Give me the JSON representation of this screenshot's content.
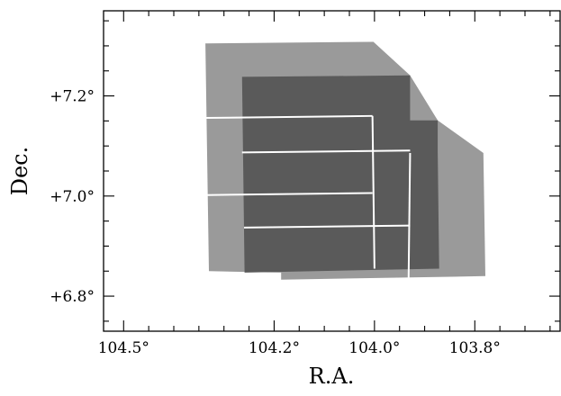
{
  "chart_data": {
    "type": "footprint",
    "xlabel": "R.A.",
    "ylabel": "Dec.",
    "xlim": [
      104.54,
      103.63
    ],
    "ylim": [
      6.73,
      7.37
    ],
    "x_ticks": [
      {
        "value": 104.5,
        "label": "104.5°"
      },
      {
        "value": 104.2,
        "label": "104.2°"
      },
      {
        "value": 104.0,
        "label": "104.0°"
      },
      {
        "value": 103.8,
        "label": "103.8°"
      }
    ],
    "y_ticks": [
      {
        "value": 7.2,
        "label": "+7.2°"
      },
      {
        "value": 7.0,
        "label": "+7.0°"
      },
      {
        "value": 6.8,
        "label": "+6.8°"
      }
    ],
    "x_minor_step": 0.05,
    "y_minor_step": 0.05,
    "colors": {
      "light_fill": "#9a9a9a",
      "overlap_fill": "#5a5a5a",
      "seam": "#ffffff"
    },
    "light_regions": [
      [
        [
          104.337,
          7.305
        ],
        [
          104.002,
          7.308
        ],
        [
          103.929,
          7.241
        ],
        [
          103.874,
          7.151
        ],
        [
          103.783,
          7.086
        ],
        [
          103.779,
          6.84
        ],
        [
          104.186,
          6.833
        ],
        [
          104.186,
          6.847
        ],
        [
          104.33,
          6.85
        ]
      ]
    ],
    "dark_regions": [
      [
        [
          104.264,
          7.238
        ],
        [
          103.929,
          7.241
        ],
        [
          103.929,
          7.151
        ],
        [
          103.874,
          7.151
        ],
        [
          103.874,
          7.086
        ],
        [
          103.871,
          6.855
        ],
        [
          104.259,
          6.847
        ]
      ]
    ],
    "seams": [
      [
        [
          104.336,
          7.156
        ],
        [
          104.004,
          7.16
        ]
      ],
      [
        [
          104.334,
          7.002
        ],
        [
          104.004,
          7.006
        ]
      ],
      [
        [
          104.004,
          7.16
        ],
        [
          104.0,
          6.855
        ]
      ],
      [
        [
          103.929,
          7.086
        ],
        [
          103.932,
          6.834
        ]
      ],
      [
        [
          104.264,
          7.087
        ],
        [
          103.929,
          7.091
        ]
      ],
      [
        [
          104.26,
          6.937
        ],
        [
          103.929,
          6.941
        ]
      ]
    ]
  }
}
